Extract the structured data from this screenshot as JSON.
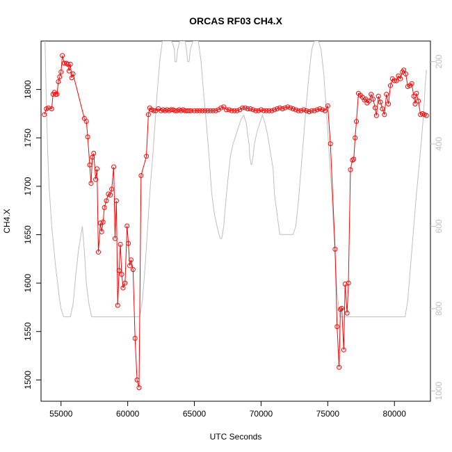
{
  "chart_data": {
    "type": "line",
    "title": "ORCAS RF03 CH4.X",
    "xlabel": "UTC Seconds",
    "ylabel": "CH4.X",
    "xlim": [
      53500,
      82700
    ],
    "ylim": [
      1478,
      1850
    ],
    "x_ticks": [
      "55000",
      "60000",
      "65000",
      "70000",
      "75000",
      "80000"
    ],
    "y_ticks": [
      "1500",
      "1550",
      "1600",
      "1650",
      "1700",
      "1750",
      "1800"
    ],
    "y2_ticks": [
      "200",
      "400",
      "600",
      "800",
      "1000"
    ],
    "y2_reversed": true,
    "y2_lim": [
      1025,
      150
    ],
    "colors": {
      "series": "#ff0000",
      "secondary": "#bebebe"
    },
    "series": [
      {
        "marker": "open-circle",
        "points": [
          [
            53750,
            1774
          ],
          [
            53900,
            1780
          ],
          [
            54050,
            1781
          ],
          [
            54300,
            1780
          ],
          [
            54400,
            1795
          ],
          [
            54500,
            1797
          ],
          [
            54600,
            1795
          ],
          [
            54700,
            1795
          ],
          [
            54800,
            1808
          ],
          [
            54900,
            1813
          ],
          [
            55000,
            1818
          ],
          [
            55100,
            1835
          ],
          [
            55250,
            1827
          ],
          [
            55400,
            1827
          ],
          [
            55500,
            1826
          ],
          [
            55600,
            1819
          ],
          [
            55700,
            1826
          ],
          [
            55800,
            1812
          ],
          [
            55900,
            1816
          ],
          [
            56750,
            1770
          ],
          [
            56900,
            1767
          ],
          [
            57000,
            1751
          ],
          [
            57150,
            1722
          ],
          [
            57250,
            1703
          ],
          [
            57350,
            1730
          ],
          [
            57450,
            1734
          ],
          [
            57600,
            1707
          ],
          [
            57700,
            1718
          ],
          [
            57800,
            1632
          ],
          [
            57950,
            1662
          ],
          [
            58050,
            1653
          ],
          [
            58150,
            1663
          ],
          [
            58250,
            1678
          ],
          [
            58400,
            1685
          ],
          [
            58550,
            1692
          ],
          [
            58700,
            1691
          ],
          [
            58800,
            1697
          ],
          [
            58950,
            1720
          ],
          [
            59050,
            1646
          ],
          [
            59150,
            1685
          ],
          [
            59250,
            1577
          ],
          [
            59350,
            1613
          ],
          [
            59450,
            1640
          ],
          [
            59550,
            1609
          ],
          [
            59650,
            1595
          ],
          [
            59800,
            1600
          ],
          [
            59950,
            1659
          ],
          [
            60050,
            1641
          ],
          [
            60150,
            1618
          ],
          [
            60250,
            1624
          ],
          [
            60400,
            1614
          ],
          [
            60550,
            1543
          ],
          [
            60700,
            1500
          ],
          [
            60850,
            1492
          ],
          [
            61000,
            1711
          ],
          [
            61400,
            1731
          ],
          [
            61550,
            1774
          ],
          [
            61650,
            1781
          ],
          [
            61800,
            1779
          ],
          [
            61950,
            1778
          ],
          [
            62100,
            1778
          ],
          [
            62300,
            1780
          ],
          [
            62500,
            1778
          ],
          [
            62650,
            1779
          ],
          [
            62800,
            1778
          ],
          [
            62950,
            1779
          ],
          [
            63100,
            1778
          ],
          [
            63250,
            1779
          ],
          [
            63400,
            1779
          ],
          [
            63550,
            1778
          ],
          [
            63700,
            1778
          ],
          [
            63850,
            1779
          ],
          [
            64000,
            1778
          ],
          [
            64150,
            1779
          ],
          [
            64300,
            1778
          ],
          [
            64450,
            1778
          ],
          [
            64600,
            1778
          ],
          [
            64750,
            1778
          ],
          [
            65000,
            1778
          ],
          [
            65200,
            1778
          ],
          [
            65400,
            1778
          ],
          [
            65600,
            1778
          ],
          [
            65800,
            1778
          ],
          [
            66000,
            1778
          ],
          [
            66200,
            1778
          ],
          [
            66400,
            1778
          ],
          [
            66600,
            1778
          ],
          [
            66800,
            1779
          ],
          [
            67000,
            1781
          ],
          [
            67200,
            1782
          ],
          [
            67400,
            1779
          ],
          [
            67600,
            1779
          ],
          [
            67800,
            1778
          ],
          [
            68000,
            1778
          ],
          [
            68200,
            1778
          ],
          [
            68400,
            1779
          ],
          [
            68600,
            1781
          ],
          [
            68800,
            1781
          ],
          [
            69000,
            1780
          ],
          [
            69200,
            1780
          ],
          [
            69400,
            1779
          ],
          [
            69600,
            1778
          ],
          [
            69800,
            1778
          ],
          [
            70000,
            1779
          ],
          [
            70200,
            1778
          ],
          [
            70400,
            1778
          ],
          [
            70600,
            1778
          ],
          [
            70800,
            1778
          ],
          [
            71000,
            1779
          ],
          [
            71200,
            1780
          ],
          [
            71400,
            1781
          ],
          [
            71600,
            1780
          ],
          [
            71800,
            1781
          ],
          [
            72000,
            1782
          ],
          [
            72200,
            1781
          ],
          [
            72400,
            1780
          ],
          [
            72600,
            1779
          ],
          [
            72800,
            1778
          ],
          [
            73000,
            1778
          ],
          [
            73200,
            1779
          ],
          [
            73400,
            1778
          ],
          [
            73600,
            1777
          ],
          [
            73800,
            1778
          ],
          [
            74000,
            1778
          ],
          [
            74200,
            1779
          ],
          [
            74400,
            1780
          ],
          [
            74600,
            1779
          ],
          [
            74800,
            1778
          ],
          [
            75000,
            1783
          ],
          [
            75200,
            1744
          ],
          [
            75550,
            1635
          ],
          [
            75700,
            1555
          ],
          [
            75850,
            1513
          ],
          [
            75950,
            1573
          ],
          [
            76050,
            1574
          ],
          [
            76200,
            1531
          ],
          [
            76300,
            1599
          ],
          [
            76450,
            1569
          ],
          [
            76550,
            1600
          ],
          [
            76700,
            1717
          ],
          [
            76850,
            1727
          ],
          [
            76950,
            1728
          ],
          [
            77050,
            1750
          ],
          [
            77150,
            1767
          ],
          [
            77300,
            1796
          ],
          [
            77450,
            1794
          ],
          [
            77600,
            1792
          ],
          [
            77750,
            1789
          ],
          [
            77850,
            1790
          ],
          [
            77950,
            1786
          ],
          [
            78100,
            1788
          ],
          [
            78250,
            1795
          ],
          [
            78400,
            1790
          ],
          [
            78550,
            1781
          ],
          [
            78650,
            1773
          ],
          [
            78800,
            1793
          ],
          [
            78950,
            1787
          ],
          [
            79100,
            1780
          ],
          [
            79250,
            1774
          ],
          [
            79400,
            1795
          ],
          [
            79550,
            1785
          ],
          [
            79700,
            1804
          ],
          [
            79850,
            1811
          ],
          [
            80000,
            1809
          ],
          [
            80150,
            1809
          ],
          [
            80300,
            1814
          ],
          [
            80450,
            1811
          ],
          [
            80600,
            1818
          ],
          [
            80700,
            1820
          ],
          [
            80850,
            1816
          ],
          [
            81000,
            1803
          ],
          [
            81150,
            1804
          ],
          [
            81300,
            1806
          ],
          [
            81450,
            1793
          ],
          [
            81550,
            1785
          ],
          [
            81650,
            1796
          ],
          [
            81800,
            1788
          ],
          [
            81950,
            1774
          ],
          [
            82100,
            1775
          ],
          [
            82250,
            1774
          ],
          [
            82400,
            1773
          ]
        ]
      }
    ],
    "secondary_series": {
      "points": [
        [
          53800,
          150
        ],
        [
          53900,
          300
        ],
        [
          54000,
          420
        ],
        [
          54100,
          500
        ],
        [
          54300,
          600
        ],
        [
          54600,
          700
        ],
        [
          54900,
          780
        ],
        [
          55000,
          800
        ],
        [
          55200,
          820
        ],
        [
          55700,
          820
        ],
        [
          55900,
          790
        ],
        [
          56100,
          720
        ],
        [
          56300,
          660
        ],
        [
          56450,
          630
        ],
        [
          56600,
          600
        ],
        [
          56750,
          660
        ],
        [
          56900,
          740
        ],
        [
          57100,
          790
        ],
        [
          57300,
          820
        ],
        [
          57500,
          820
        ],
        [
          58000,
          820
        ],
        [
          59000,
          820
        ],
        [
          60000,
          820
        ],
        [
          60500,
          820
        ],
        [
          60900,
          820
        ],
        [
          61100,
          780
        ],
        [
          61300,
          700
        ],
        [
          61500,
          600
        ],
        [
          61700,
          500
        ],
        [
          61900,
          420
        ],
        [
          62050,
          350
        ],
        [
          62200,
          280
        ],
        [
          62400,
          200
        ],
        [
          62600,
          150
        ],
        [
          63000,
          150
        ],
        [
          63300,
          150
        ],
        [
          63500,
          170
        ],
        [
          63550,
          200
        ],
        [
          63650,
          200
        ],
        [
          63750,
          170
        ],
        [
          63900,
          150
        ],
        [
          64300,
          150
        ],
        [
          64400,
          170
        ],
        [
          64500,
          200
        ],
        [
          64600,
          200
        ],
        [
          64700,
          170
        ],
        [
          64900,
          150
        ],
        [
          65300,
          150
        ],
        [
          65500,
          200
        ],
        [
          65700,
          280
        ],
        [
          65900,
          350
        ],
        [
          66100,
          430
        ],
        [
          66300,
          520
        ],
        [
          66500,
          570
        ],
        [
          66700,
          600
        ],
        [
          66850,
          620
        ],
        [
          66950,
          630
        ],
        [
          67050,
          630
        ],
        [
          67200,
          600
        ],
        [
          67300,
          560
        ],
        [
          67500,
          490
        ],
        [
          67700,
          430
        ],
        [
          67900,
          400
        ],
        [
          68100,
          380
        ],
        [
          68300,
          360
        ],
        [
          68500,
          340
        ],
        [
          68700,
          330
        ],
        [
          68900,
          350
        ],
        [
          69000,
          380
        ],
        [
          69100,
          400
        ],
        [
          69150,
          430
        ],
        [
          69250,
          450
        ],
        [
          69300,
          450
        ],
        [
          69400,
          430
        ],
        [
          69500,
          400
        ],
        [
          69700,
          370
        ],
        [
          69900,
          350
        ],
        [
          70100,
          330
        ],
        [
          70300,
          350
        ],
        [
          70500,
          380
        ],
        [
          70700,
          420
        ],
        [
          70900,
          460
        ],
        [
          71000,
          520
        ],
        [
          71200,
          570
        ],
        [
          71400,
          620
        ],
        [
          71600,
          620
        ],
        [
          72000,
          620
        ],
        [
          72400,
          620
        ],
        [
          72600,
          600
        ],
        [
          72800,
          540
        ],
        [
          73000,
          460
        ],
        [
          73200,
          380
        ],
        [
          73400,
          300
        ],
        [
          73600,
          230
        ],
        [
          73800,
          170
        ],
        [
          74000,
          150
        ],
        [
          74300,
          150
        ],
        [
          74500,
          170
        ],
        [
          74700,
          230
        ],
        [
          74900,
          320
        ],
        [
          75100,
          420
        ],
        [
          75300,
          520
        ],
        [
          75500,
          640
        ],
        [
          75700,
          760
        ],
        [
          75900,
          820
        ],
        [
          76200,
          820
        ],
        [
          77000,
          820
        ],
        [
          78000,
          820
        ],
        [
          79000,
          820
        ],
        [
          80000,
          820
        ],
        [
          80800,
          820
        ],
        [
          81000,
          780
        ],
        [
          81200,
          700
        ],
        [
          81400,
          620
        ],
        [
          81600,
          540
        ],
        [
          81800,
          470
        ],
        [
          82000,
          400
        ],
        [
          82200,
          320
        ],
        [
          82300,
          260
        ],
        [
          82400,
          220
        ]
      ]
    }
  }
}
